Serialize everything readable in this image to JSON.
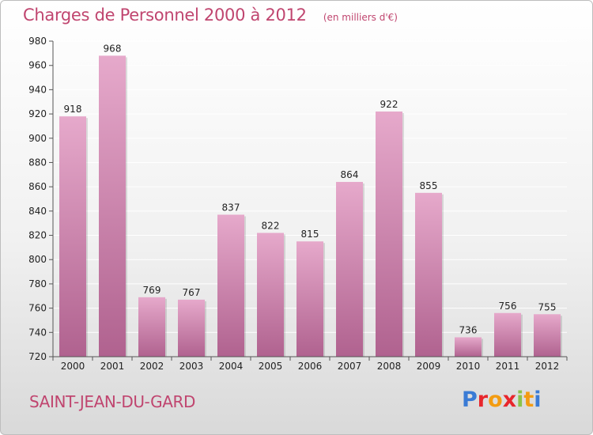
{
  "header": {
    "title": "Charges de Personnel 2000 à 2012",
    "unit": "(en milliers d'€)"
  },
  "footer": {
    "commune": "SAINT-JEAN-DU-GARD",
    "brand": "Proxiti",
    "brand_colors": [
      "#3a7bd5",
      "#e8262c",
      "#f39c12",
      "#e8262c",
      "#8bc34a",
      "#f39c12",
      "#3a7bd5"
    ]
  },
  "colors": {
    "title": "#c0456f",
    "bar_top": "#e6a9cb",
    "bar_bottom": "#b0628f",
    "grid": "#ffffff",
    "axis_text": "#222222"
  },
  "chart_data": {
    "type": "bar",
    "title": "Charges de Personnel 2000 à 2012",
    "subtitle": "(en milliers d'€)",
    "xlabel": "",
    "ylabel": "",
    "categories": [
      "2000",
      "2001",
      "2002",
      "2003",
      "2004",
      "2005",
      "2006",
      "2007",
      "2008",
      "2009",
      "2010",
      "2011",
      "2012"
    ],
    "values": [
      918,
      968,
      769,
      767,
      837,
      822,
      815,
      864,
      922,
      855,
      736,
      756,
      755
    ],
    "ylim": [
      720,
      980
    ],
    "yticks": [
      720,
      740,
      760,
      780,
      800,
      820,
      840,
      860,
      880,
      900,
      920,
      940,
      960,
      980
    ],
    "grid": true,
    "legend": "none"
  }
}
